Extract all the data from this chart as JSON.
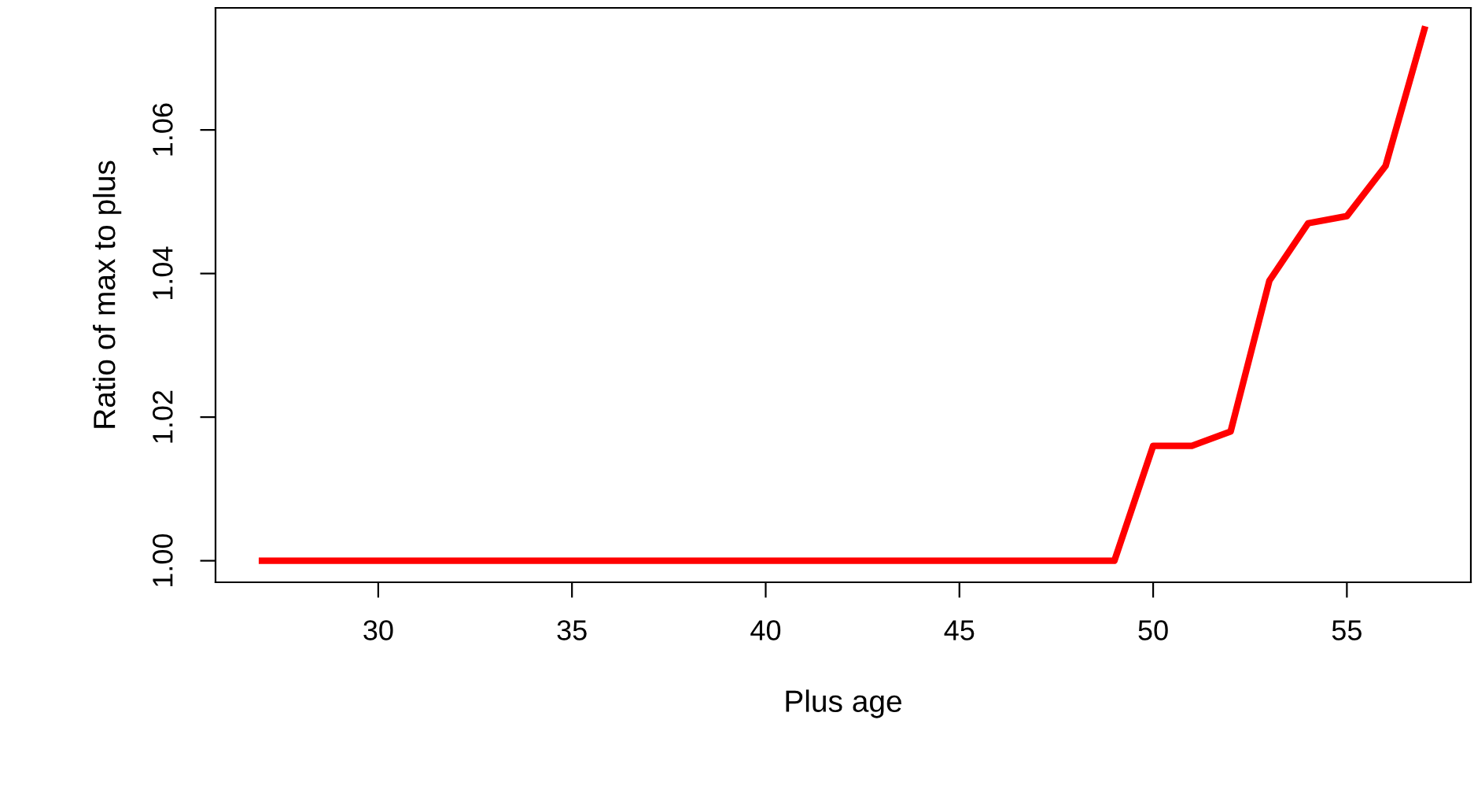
{
  "chart_data": {
    "type": "line",
    "xlabel": "Plus age",
    "ylabel": "Ratio of max to plus",
    "x": [
      27,
      28,
      29,
      30,
      31,
      32,
      33,
      34,
      35,
      36,
      37,
      38,
      39,
      40,
      41,
      42,
      43,
      44,
      45,
      46,
      47,
      48,
      49,
      50,
      51,
      52,
      53,
      54,
      55,
      56,
      57
    ],
    "series": [
      {
        "color": "#ff0000",
        "values": [
          1,
          1,
          1,
          1,
          1,
          1,
          1,
          1,
          1,
          1,
          1,
          1,
          1,
          1,
          1,
          1,
          1,
          1,
          1,
          1,
          1,
          1,
          1,
          1.016,
          1.016,
          1.018,
          1.039,
          1.047,
          1.048,
          1.055,
          1.074
        ]
      }
    ],
    "xlim": [
      25.8,
      58.2
    ],
    "ylim": [
      0.997,
      1.077
    ],
    "xticks": [
      30,
      35,
      40,
      45,
      50,
      55
    ],
    "yticks": [
      {
        "value": 1.0,
        "label": "1.00"
      },
      {
        "value": 1.02,
        "label": "1.02"
      },
      {
        "value": 1.04,
        "label": "1.04"
      },
      {
        "value": 1.06,
        "label": "1.06"
      }
    ],
    "grid": false,
    "legend": false
  }
}
